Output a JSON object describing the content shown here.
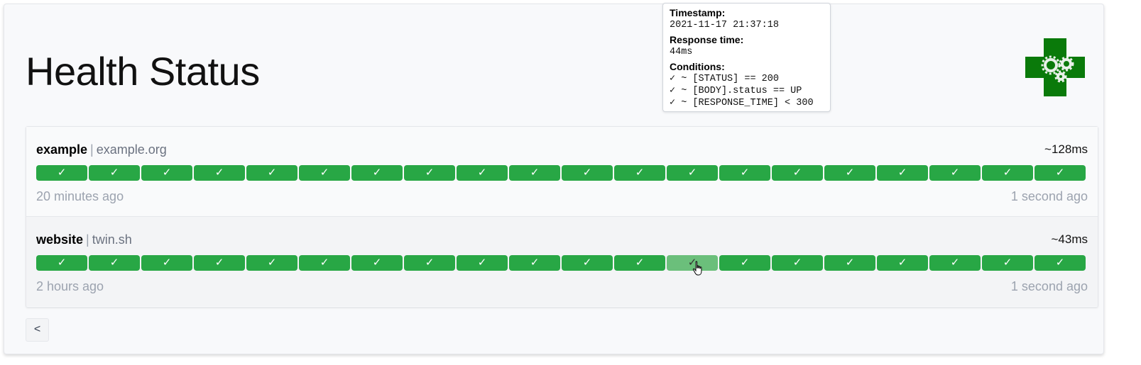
{
  "page": {
    "title": "Health Status"
  },
  "colors": {
    "success": "#28a745",
    "hover": "#6bbf7b"
  },
  "logo": {
    "icon": "health-cross-gears-logo"
  },
  "services": [
    {
      "name": "example",
      "group_sep": "|",
      "host": "example.org",
      "avg_response": "~128ms",
      "oldest": "20 minutes ago",
      "newest": "1 second ago",
      "results": [
        "✓",
        "✓",
        "✓",
        "✓",
        "✓",
        "✓",
        "✓",
        "✓",
        "✓",
        "✓",
        "✓",
        "✓",
        "✓",
        "✓",
        "✓",
        "✓",
        "✓",
        "✓",
        "✓",
        "✓"
      ]
    },
    {
      "name": "website",
      "group_sep": "|",
      "host": "twin.sh",
      "avg_response": "~43ms",
      "oldest": "2 hours ago",
      "newest": "1 second ago",
      "results": [
        "✓",
        "✓",
        "✓",
        "✓",
        "✓",
        "✓",
        "✓",
        "✓",
        "✓",
        "✓",
        "✓",
        "✓",
        "✓",
        "✓",
        "✓",
        "✓",
        "✓",
        "✓",
        "✓",
        "✓"
      ],
      "hovered_index": 12
    }
  ],
  "tooltip": {
    "timestamp_label": "Timestamp:",
    "timestamp": "2021-11-17 21:37:18",
    "response_label": "Response time:",
    "response": "44ms",
    "conditions_label": "Conditions:",
    "conditions": [
      "✓ ~ [STATUS] == 200",
      "✓ ~ [BODY].status == UP",
      "✓ ~ [RESPONSE_TIME] < 300"
    ]
  },
  "pagination": {
    "prev_label": "<"
  }
}
